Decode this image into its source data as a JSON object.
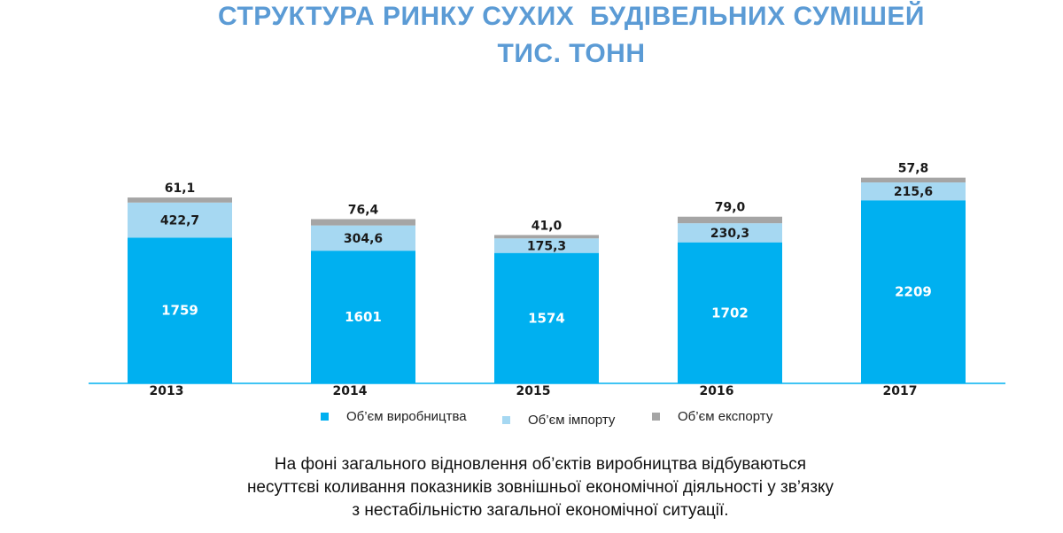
{
  "chart_data": {
    "type": "bar",
    "stacked": true,
    "title": [
      "СТРУКТУРА РИНКУ СУХИХ  БУДІВЕЛЬНИХ СУМІШЕЙ",
      "ТИС. ТОНН"
    ],
    "categories": [
      "2013",
      "2014",
      "2015",
      "2016",
      "2017"
    ],
    "series": [
      {
        "name": "Об’єм виробництва",
        "color": "#00b0f0",
        "values": [
          1759,
          1601,
          1574,
          1702,
          2209
        ],
        "labels": [
          "1759",
          "1601",
          "1574",
          "1702",
          "2209"
        ]
      },
      {
        "name": "Об’єм імпорту",
        "color": "#a6d8f2",
        "values": [
          422.7,
          304.6,
          175.3,
          230.3,
          215.6
        ],
        "labels": [
          "422,7",
          "304,6",
          "175,3",
          "230,3",
          "215,6"
        ]
      },
      {
        "name": "Об’єм експорту",
        "color": "#a5a5a5",
        "values": [
          61.1,
          76.4,
          41.0,
          79.0,
          57.8
        ],
        "labels": [
          "61,1",
          "76,4",
          "41,0",
          "79,0",
          "57,8"
        ]
      }
    ],
    "legend_position": "bottom",
    "grid": false
  },
  "note": [
    "На фоні загального відновлення об’єктів виробництва відбуваються",
    "несуттєві коливання показників зовнішньої економічної діяльності у зв’язку",
    "з нестабільністю загальної економічної ситуації."
  ]
}
